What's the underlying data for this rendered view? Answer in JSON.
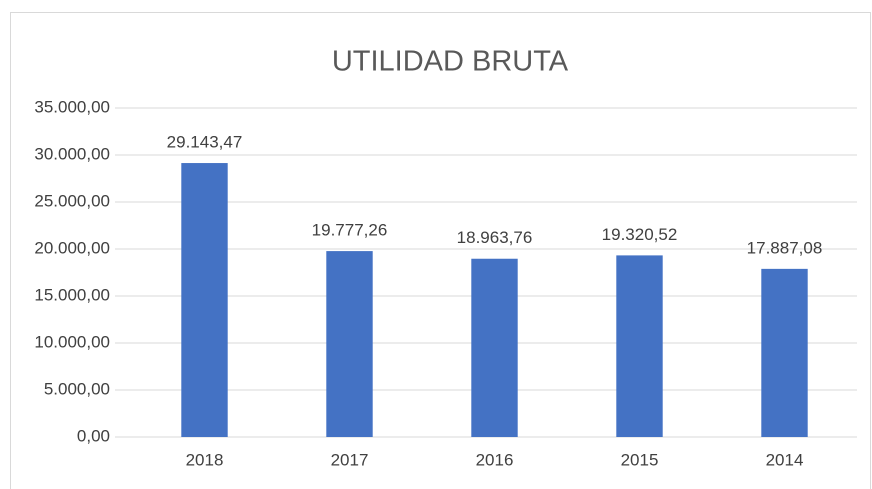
{
  "chart_data": {
    "type": "bar",
    "title": "UTILIDAD BRUTA",
    "categories": [
      "2018",
      "2017",
      "2016",
      "2015",
      "2014"
    ],
    "values": [
      29143.47,
      19777.26,
      18963.76,
      19320.52,
      17887.08
    ],
    "value_labels": [
      "29.143,47",
      "19.777,26",
      "18.963,76",
      "19.320,52",
      "17.887,08"
    ],
    "color": "#4472c4",
    "ylim": [
      0,
      35000
    ],
    "yticks": [
      {
        "value": 0,
        "label": "0,00"
      },
      {
        "value": 5000,
        "label": "5.000,00"
      },
      {
        "value": 10000,
        "label": "10.000,00"
      },
      {
        "value": 15000,
        "label": "15.000,00"
      },
      {
        "value": 20000,
        "label": "20.000,00"
      },
      {
        "value": 25000,
        "label": "25.000,00"
      },
      {
        "value": 30000,
        "label": "30.000,00"
      },
      {
        "value": 35000,
        "label": "35.000,00"
      }
    ],
    "grid": true
  }
}
